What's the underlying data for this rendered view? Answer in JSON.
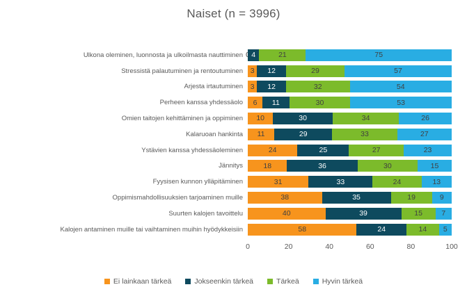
{
  "title": "Naiset (n = 3996)",
  "legend": [
    {
      "label": "Ei lainkaan tärkeä",
      "color": "#F7941D"
    },
    {
      "label": "Jokseenkin tärkeä",
      "color": "#0E4A5E"
    },
    {
      "label": "Tärkeä",
      "color": "#7CBB2B"
    },
    {
      "label": "Hyvin tärkeä",
      "color": "#29ADE3"
    }
  ],
  "x_axis": {
    "ticks": [
      0,
      20,
      40,
      60,
      80,
      100
    ]
  },
  "chart_data": {
    "type": "bar",
    "orientation": "horizontal-stacked",
    "title": "Naiset (n = 3996)",
    "xlim": [
      0,
      100
    ],
    "grid": "white dashed vertical lines over bars",
    "legend_position": "bottom",
    "categories": [
      "Ulkona oleminen, luonnosta ja ulkoilmasta nauttiminen",
      "Stressistä palautuminen ja rentoutuminen",
      "Arjesta irtautuminen",
      "Perheen kanssa yhdessäolo",
      "Omien taitojen kehittäminen ja oppiminen",
      "Kalaruoan hankinta",
      "Ystävien kanssa yhdessäoleminen",
      "Jännitys",
      "Fyysisen kunnon ylläpitäminen",
      "Oppimismahdollisuuksien tarjoaminen muille",
      "Suurten kalojen tavoittelu",
      "Kalojen antaminen muille tai vaihtaminen muihin hyödykkeisiin"
    ],
    "series": [
      {
        "name": "Ei lainkaan tärkeä",
        "color": "#F7941D",
        "label_color": "#404040",
        "values": [
          0,
          3,
          3,
          6,
          10,
          11,
          24,
          18,
          31,
          38,
          40,
          58
        ]
      },
      {
        "name": "Jokseenkin tärkeä",
        "color": "#0E4A5E",
        "label_color": "#ffffff",
        "values": [
          4,
          12,
          12,
          11,
          30,
          29,
          25,
          36,
          33,
          35,
          39,
          24
        ]
      },
      {
        "name": "Tärkeä",
        "color": "#7CBB2B",
        "label_color": "#404040",
        "values": [
          21,
          29,
          32,
          30,
          34,
          33,
          27,
          30,
          24,
          19,
          15,
          14
        ]
      },
      {
        "name": "Hyvin tärkeä",
        "color": "#29ADE3",
        "label_color": "#404040",
        "values": [
          75,
          57,
          54,
          53,
          26,
          27,
          23,
          15,
          13,
          9,
          7,
          5
        ]
      }
    ]
  }
}
